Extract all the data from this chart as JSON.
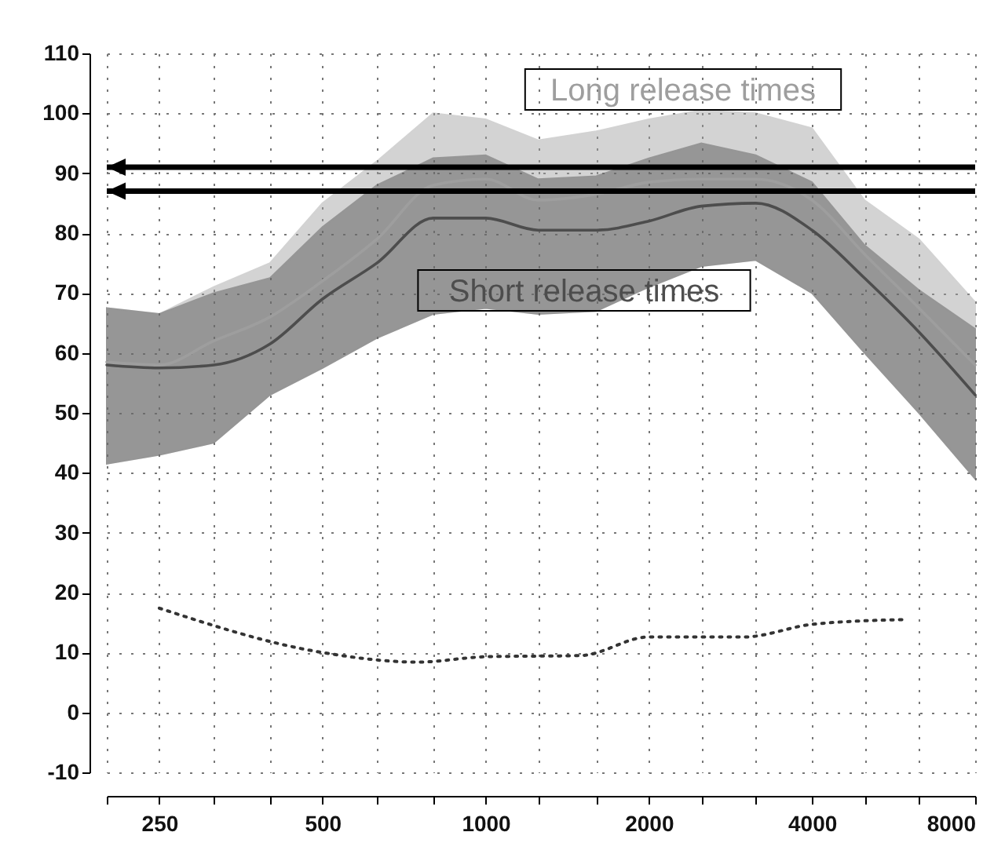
{
  "chart_data": {
    "type": "line",
    "log": "x",
    "grid": true,
    "line_style": "solid",
    "x": [
      200,
      250,
      315,
      400,
      500,
      630,
      800,
      1000,
      1250,
      1600,
      2000,
      2500,
      3150,
      4000,
      5000,
      6300,
      8000
    ],
    "xlim": [
      200,
      8000
    ],
    "xticks": [
      {
        "value": 200,
        "label": null
      },
      250,
      {
        "value": 315,
        "label": null
      },
      {
        "value": 400,
        "label": null
      },
      500,
      {
        "value": 630,
        "label": null
      },
      {
        "value": 800,
        "label": null
      },
      1000,
      {
        "value": 1250,
        "label": null
      },
      {
        "value": 1600,
        "label": null
      },
      2000,
      {
        "value": 2500,
        "label": null
      },
      {
        "value": 3150,
        "label": null
      },
      4000,
      {
        "value": 5000,
        "label": null
      },
      {
        "value": 6300,
        "label": null
      },
      8000
    ],
    "ylim": [
      -10,
      110
    ],
    "yticks": [
      -10,
      0,
      10,
      20,
      30,
      40,
      50,
      60,
      70,
      80,
      90,
      100,
      110
    ],
    "series": [
      {
        "name": "Long release times",
        "color": "#9e9e9e",
        "values": [
          58.5,
          58,
          62,
          66,
          72,
          79,
          88,
          89,
          85.5,
          86.5,
          88.5,
          89,
          89,
          85.5,
          76.5,
          67.5,
          58
        ],
        "upper": [
          67.5,
          66.5,
          71,
          75,
          85,
          92,
          100,
          99,
          95.5,
          97,
          99,
          100.5,
          100,
          97.5,
          85.5,
          79,
          68.5
        ],
        "lower": [
          41.5,
          43,
          45,
          53,
          57.5,
          62.5,
          66.5,
          67.5,
          66.5,
          67,
          71,
          74.5,
          75.5,
          70,
          60,
          50,
          39
        ]
      },
      {
        "name": "Short release times",
        "color": "#4d4d4d",
        "values": [
          58,
          57.5,
          58,
          61.5,
          69,
          75,
          82.5,
          82.5,
          80.5,
          80.5,
          82,
          84.5,
          85,
          80.5,
          72.5,
          63.5,
          53
        ],
        "upper": [
          67.5,
          66.5,
          70,
          72.5,
          81,
          88,
          92.5,
          93,
          89,
          89.5,
          92.5,
          95,
          93,
          88.5,
          78,
          70.5,
          64
        ],
        "lower": [
          41.5,
          43,
          45,
          53,
          57.5,
          62.5,
          66.5,
          67.5,
          66.5,
          67,
          71,
          74.5,
          75.5,
          70,
          60,
          50,
          39
        ]
      },
      {
        "color": "#333333",
        "line_style": "dotted",
        "x": [
          250,
          500,
          750,
          1000,
          1500,
          2000,
          3000,
          4000,
          5900
        ],
        "values": [
          17.4,
          10,
          8.4,
          9.3,
          9.5,
          12.6,
          12.6,
          14.7,
          15.5
        ]
      }
    ],
    "ref_lines": [
      {
        "axis": "y",
        "value": 91,
        "color": "#000000"
      },
      {
        "axis": "y",
        "value": 87,
        "color": "#000000"
      }
    ]
  }
}
